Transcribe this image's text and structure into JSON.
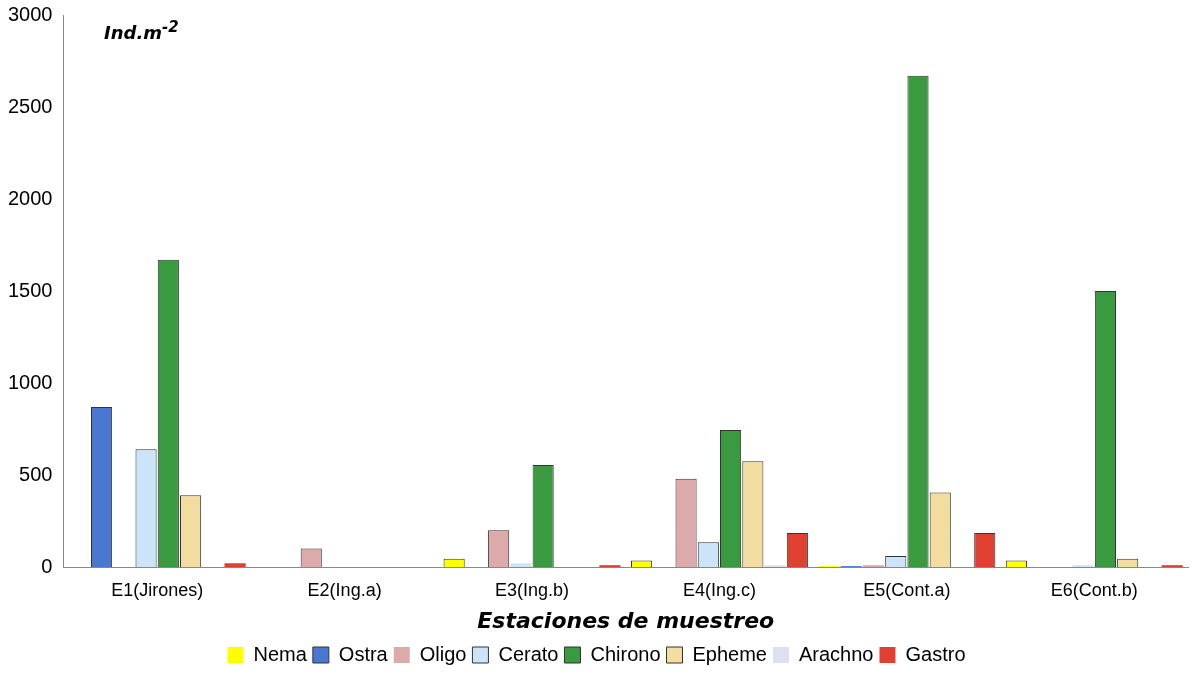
{
  "chart_data": {
    "type": "bar",
    "ylabel": "Ind.m$^{-2}$",
    "xlabel": "Estaciones de muestreo",
    "categories": [
      "E1(Jirones)",
      "E2(Ing.a)",
      "E3(Ing.b)",
      "E4(Ing.c)",
      "E5(Cont.a)",
      "E6(Cont.b)"
    ],
    "series": [
      {
        "name": "Nema",
        "color": "#ffff00",
        "values": [
          0,
          0,
          45,
          35,
          5,
          35
        ]
      },
      {
        "name": "Ostra",
        "color": "#4a78d0",
        "values": [
          870,
          0,
          0,
          0,
          5,
          0
        ]
      },
      {
        "name": "Oligo",
        "color": "#dcaaaa",
        "values": [
          0,
          100,
          200,
          480,
          10,
          0
        ]
      },
      {
        "name": "Cerato",
        "color": "#cce4f8",
        "values": [
          640,
          0,
          20,
          135,
          60,
          10
        ]
      },
      {
        "name": "Chirono",
        "color": "#3a9a40",
        "values": [
          1670,
          0,
          555,
          745,
          2670,
          1500
        ]
      },
      {
        "name": "Epheme",
        "color": "#f2dca0",
        "values": [
          390,
          0,
          0,
          575,
          405,
          45
        ]
      },
      {
        "name": "Arachno",
        "color": "#dde0f0",
        "values": [
          null,
          0,
          0,
          10,
          0,
          0
        ]
      },
      {
        "name": "Gastro",
        "color": "#e04030",
        "values": [
          20,
          0,
          10,
          185,
          185,
          10
        ]
      }
    ],
    "ylim": [
      0,
      3000
    ],
    "yticks": [
      0,
      500,
      1000,
      1500,
      2000,
      2500,
      3000
    ],
    "grid": false,
    "legend": "bottom"
  }
}
